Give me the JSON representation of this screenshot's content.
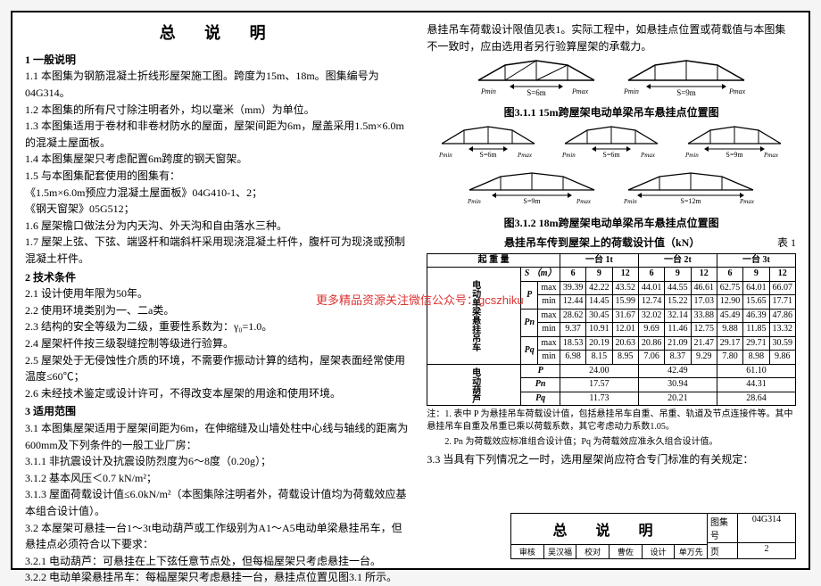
{
  "title": "总 说 明",
  "watermark": "更多精品资源关注微信公众号：gcszhiku",
  "left": {
    "h1": "1 一般说明",
    "p1_1": "1.1 本图集为钢筋混凝土折线形屋架施工图。跨度为15m、18m。图集编号为04G314。",
    "p1_2": "1.2 本图集的所有尺寸除注明者外，均以毫米（mm）为单位。",
    "p1_3": "1.3 本图集适用于卷材和非卷材防水的屋面，屋架间距为6m，屋盖采用1.5m×6.0m的混凝土屋面板。",
    "p1_4": "1.4 本图集屋架只考虑配置6m跨度的钢天窗架。",
    "p1_5": "1.5 与本图集配套使用的图集有：",
    "p1_5a": "《1.5m×6.0m预应力混凝土屋面板》04G410-1、2；",
    "p1_5b": "《钢天窗架》05G512；",
    "p1_6": "1.6 屋架檐口做法分为内天沟、外天沟和自由落水三种。",
    "p1_7": "1.7 屋架上弦、下弦、端竖杆和端斜杆采用现浇混凝土杆件，腹杆可为现浇或预制混凝土杆件。",
    "h2": "2 技术条件",
    "p2_1": "2.1 设计使用年限为50年。",
    "p2_2": "2.2 使用环境类别为一、二a类。",
    "p2_3": "2.3 结构的安全等级为二级，重要性系数为：γ₀=1.0。",
    "p2_4": "2.4 屋架杆件按三级裂缝控制等级进行验算。",
    "p2_5": "2.5 屋架处于无侵蚀性介质的环境，不需要作振动计算的结构，屋架表面经常使用温度≤60℃；",
    "p2_6": "2.6 未经技术鉴定或设计许可，不得改变本屋架的用途和使用环境。",
    "h3": "3 适用范围",
    "p3_1": "3.1 本图集屋架适用于屋架间距为6m，在伸缩缝及山墙处柱中心线与轴线的距离为600mm及下列条件的一般工业厂房：",
    "p3_1_1": "3.1.1 非抗震设计及抗震设防烈度为6～8度（0.20g）；",
    "p3_1_2": "3.1.2 基本风压＜0.7 kN/m²；",
    "p3_1_3": "3.1.3 屋面荷载设计值≤6.0kN/m²（本图集除注明者外，荷载设计值均为荷载效应基本组合设计值）。",
    "p3_2": "3.2 本屋架可悬挂一台1～3t电动葫芦或工作级别为A1～A5电动单梁悬挂吊车，但悬挂点必须符合以下要求：",
    "p3_2_1": "3.2.1 电动葫芦：可悬挂在上下弦任意节点处，但每榀屋架只考虑悬挂一台。",
    "p3_2_2": "3.2.2 电动单梁悬挂吊车：每榀屋架只考虑悬挂一台，悬挂点位置见图3.1 所示。"
  },
  "right": {
    "intro": "悬挂吊车荷载设计限值见表1。实际工程中，如悬挂点位置或荷载值与本图集不一致时，应由选用者另行验算屋架的承载力。",
    "fig1_cap": "图3.1.1 15m跨屋架电动单梁吊车悬挂点位置图",
    "fig2_cap": "图3.1.2 18m跨屋架电动单梁吊车悬挂点位置图",
    "table_title": "悬挂吊车传到屋架上的荷载设计值（kN）",
    "table_no": "表 1",
    "col_groups": [
      "起 重 量",
      "一台 1t",
      "一台 2t",
      "一台 3t"
    ],
    "s_header": "S （m）",
    "s_vals": [
      "6",
      "9",
      "12",
      "6",
      "9",
      "12",
      "6",
      "9",
      "12"
    ],
    "row_group1": "电动单梁悬挂吊车",
    "row_group2": "电动葫芦",
    "rows1": [
      {
        "sym": "P",
        "sub": "max",
        "v": [
          "39.39",
          "42.22",
          "43.52",
          "44.01",
          "44.55",
          "46.61",
          "62.75",
          "64.01",
          "66.07"
        ]
      },
      {
        "sym": "",
        "sub": "min",
        "v": [
          "12.44",
          "14.45",
          "15.99",
          "12.74",
          "15.22",
          "17.03",
          "12.90",
          "15.65",
          "17.71"
        ]
      },
      {
        "sym": "Pn",
        "sub": "max",
        "v": [
          "28.62",
          "30.45",
          "31.67",
          "32.02",
          "32.14",
          "33.88",
          "45.49",
          "46.39",
          "47.86"
        ]
      },
      {
        "sym": "",
        "sub": "min",
        "v": [
          "9.37",
          "10.91",
          "12.01",
          "9.69",
          "11.46",
          "12.75",
          "9.88",
          "11.85",
          "13.32"
        ]
      },
      {
        "sym": "Pq",
        "sub": "max",
        "v": [
          "18.53",
          "20.19",
          "20.63",
          "20.86",
          "21.09",
          "21.47",
          "29.17",
          "29.71",
          "30.59"
        ]
      },
      {
        "sym": "",
        "sub": "min",
        "v": [
          "6.98",
          "8.15",
          "8.95",
          "7.06",
          "8.37",
          "9.29",
          "7.80",
          "8.98",
          "9.86"
        ]
      }
    ],
    "rows2": [
      {
        "sym": "P",
        "v": [
          "24.00",
          "42.49",
          "61.10"
        ]
      },
      {
        "sym": "Pn",
        "v": [
          "17.57",
          "30.94",
          "44.31"
        ]
      },
      {
        "sym": "Pq",
        "v": [
          "11.73",
          "20.21",
          "28.64"
        ]
      }
    ],
    "note1": "注：1. 表中 P 为悬挂吊车荷载设计值，包括悬挂吊车自重、吊重、轨道及节点连接件等。其中悬挂吊车自重及吊重已乘以荷载系数，其它考虑动力系数1.05。",
    "note2": "2. Pn 为荷载效应标准组合设计值；Pq 为荷载效应准永久组合设计值。",
    "p3_3": "3.3 当具有下列情况之一时，选用屋架尚应符合专门标准的有关规定："
  },
  "truss": {
    "s6": "S=6m",
    "s9": "S=9m",
    "s12": "S=12m",
    "pmin": "Pmin",
    "pmax": "Pmax",
    "plabel_l": "(Pmin)",
    "plabel_r": "(Pmax)"
  },
  "footer": {
    "title": "总 说 明",
    "row_labels": [
      "审核",
      "吴汉福",
      "校对",
      "曹佐",
      "设计",
      "单万先"
    ],
    "series_lab": "图集号",
    "series_val": "04G314",
    "page_lab": "页",
    "page_val": "2"
  },
  "style": {
    "accent": "#000000",
    "red": "#d33333"
  }
}
